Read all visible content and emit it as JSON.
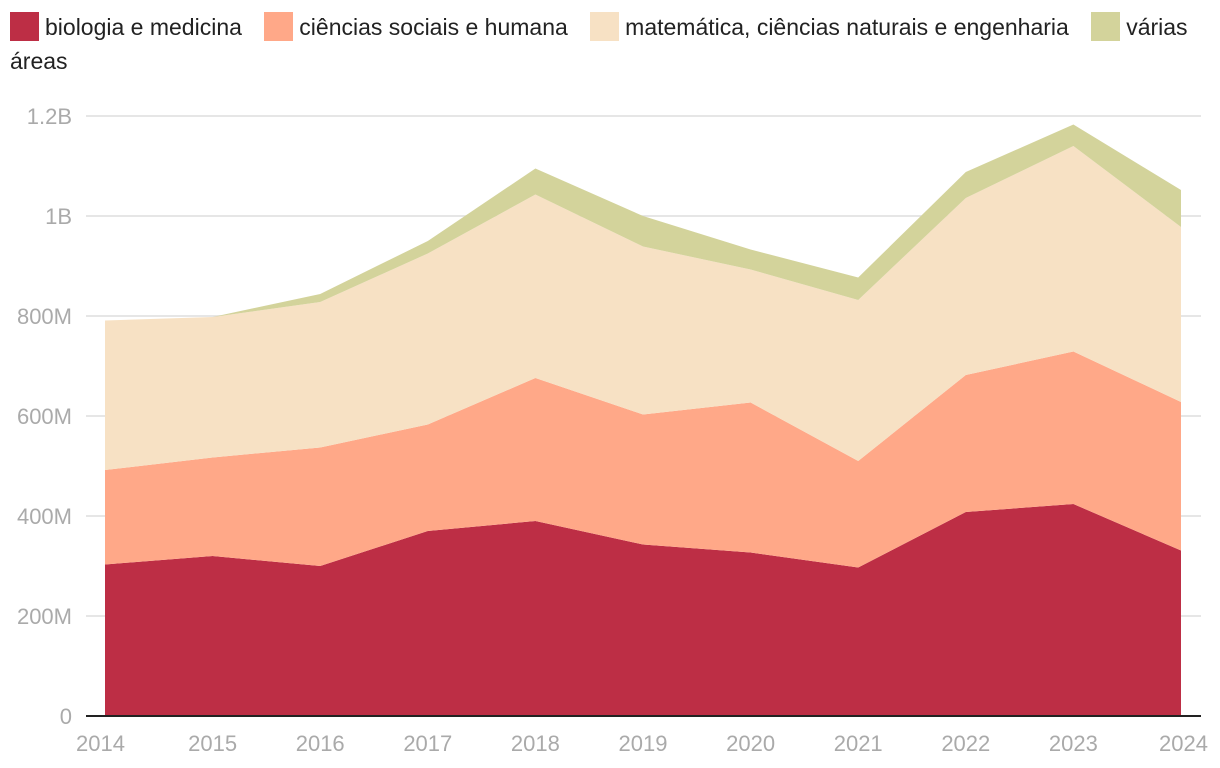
{
  "chart_data": {
    "type": "area",
    "stacked": true,
    "title": "",
    "xlabel": "",
    "ylabel": "",
    "x": [
      2014,
      2015,
      2016,
      2017,
      2018,
      2019,
      2020,
      2021,
      2022,
      2023,
      2024
    ],
    "x_tick_labels": [
      "2014",
      "2015",
      "2016",
      "2017",
      "2018",
      "2019",
      "2020",
      "2021",
      "2022",
      "2023",
      "2024"
    ],
    "ylim": [
      0,
      1200000000
    ],
    "y_ticks": [
      0,
      200000000,
      400000000,
      600000000,
      800000000,
      1000000000,
      1200000000
    ],
    "y_tick_labels": [
      "0",
      "200M",
      "400M",
      "600M",
      "800M",
      "1B",
      "1.2B"
    ],
    "grid": true,
    "legend_position": "top",
    "series": [
      {
        "name": "biologia e medicina",
        "color": "#bd2e45",
        "values": [
          303000000,
          320000000,
          300000000,
          370000000,
          390000000,
          343000000,
          327000000,
          297000000,
          408000000,
          424000000,
          331000000
        ]
      },
      {
        "name": "ciências sociais e humana",
        "color": "#ffa888",
        "values": [
          189000000,
          197000000,
          237000000,
          213000000,
          286000000,
          260000000,
          300000000,
          213000000,
          274000000,
          305000000,
          297000000
        ]
      },
      {
        "name": "matemática, ciências naturais e engenharia",
        "color": "#f7e1c4",
        "values": [
          299000000,
          281000000,
          291000000,
          342000000,
          367000000,
          336000000,
          266000000,
          322000000,
          354000000,
          411000000,
          350000000
        ]
      },
      {
        "name": "várias áreas",
        "color": "#d3d39b",
        "values": [
          0,
          0,
          16000000,
          25000000,
          52000000,
          61000000,
          40000000,
          45000000,
          52000000,
          43000000,
          74000000
        ]
      }
    ]
  }
}
